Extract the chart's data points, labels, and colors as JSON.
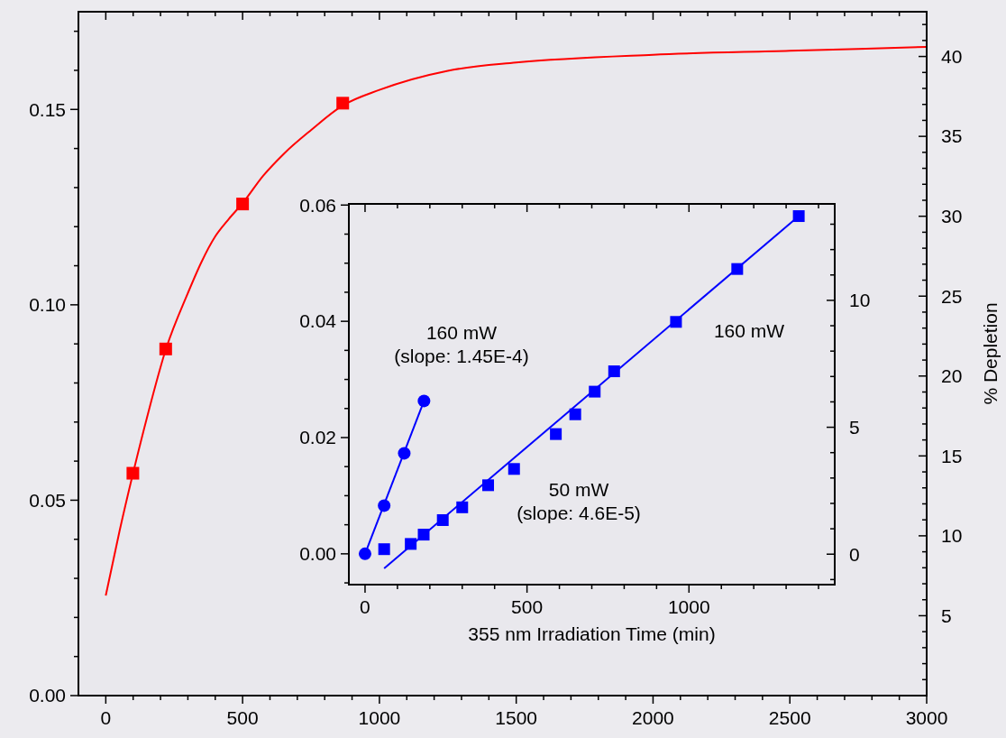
{
  "chart_data": [
    {
      "type": "scatter",
      "y2label": "% Depletion",
      "xlim": [
        -100,
        3000
      ],
      "ylim": [
        0,
        0.175
      ],
      "y2lim": [
        0,
        42.8
      ],
      "xticks": [
        0,
        {
          "value": 100,
          "label": null
        },
        {
          "value": 200,
          "label": null
        },
        {
          "value": 300,
          "label": null
        },
        {
          "value": 400,
          "label": null
        },
        500,
        {
          "value": 600,
          "label": null
        },
        {
          "value": 700,
          "label": null
        },
        {
          "value": 800,
          "label": null
        },
        {
          "value": 900,
          "label": null
        },
        1000,
        {
          "value": 1100,
          "label": null
        },
        {
          "value": 1200,
          "label": null
        },
        {
          "value": 1300,
          "label": null
        },
        {
          "value": 1400,
          "label": null
        },
        1500,
        {
          "value": 1600,
          "label": null
        },
        {
          "value": 1700,
          "label": null
        },
        {
          "value": 1800,
          "label": null
        },
        {
          "value": 1900,
          "label": null
        },
        2000,
        {
          "value": 2100,
          "label": null
        },
        {
          "value": 2200,
          "label": null
        },
        {
          "value": 2300,
          "label": null
        },
        {
          "value": 2400,
          "label": null
        },
        2500,
        {
          "value": 2600,
          "label": null
        },
        {
          "value": 2700,
          "label": null
        },
        {
          "value": 2800,
          "label": null
        },
        {
          "value": 2900,
          "label": null
        },
        3000
      ],
      "yticks": [
        {
          "value": 0,
          "label": "0.00"
        },
        {
          "value": 0.01,
          "label": null
        },
        {
          "value": 0.02,
          "label": null
        },
        {
          "value": 0.03,
          "label": null
        },
        {
          "value": 0.04,
          "label": null
        },
        0.05,
        {
          "value": 0.06,
          "label": null
        },
        {
          "value": 0.07,
          "label": null
        },
        {
          "value": 0.08,
          "label": null
        },
        {
          "value": 0.09,
          "label": null
        },
        {
          "value": 0.1,
          "label": "0.10"
        },
        {
          "value": 0.11,
          "label": null
        },
        {
          "value": 0.12,
          "label": null
        },
        {
          "value": 0.13,
          "label": null
        },
        {
          "value": 0.14,
          "label": null
        },
        0.15,
        {
          "value": 0.16,
          "label": null
        },
        {
          "value": 0.17,
          "label": null
        }
      ],
      "y2ticks": [
        {
          "value": 1,
          "label": null
        },
        {
          "value": 2,
          "label": null
        },
        {
          "value": 3,
          "label": null
        },
        {
          "value": 4,
          "label": null
        },
        5,
        {
          "value": 6,
          "label": null
        },
        {
          "value": 7,
          "label": null
        },
        {
          "value": 8,
          "label": null
        },
        {
          "value": 9,
          "label": null
        },
        10,
        {
          "value": 11,
          "label": null
        },
        {
          "value": 12,
          "label": null
        },
        {
          "value": 13,
          "label": null
        },
        {
          "value": 14,
          "label": null
        },
        15,
        {
          "value": 16,
          "label": null
        },
        {
          "value": 17,
          "label": null
        },
        {
          "value": 18,
          "label": null
        },
        {
          "value": 19,
          "label": null
        },
        20,
        {
          "value": 21,
          "label": null
        },
        {
          "value": 22,
          "label": null
        },
        {
          "value": 23,
          "label": null
        },
        {
          "value": 24,
          "label": null
        },
        25,
        {
          "value": 26,
          "label": null
        },
        {
          "value": 27,
          "label": null
        },
        {
          "value": 28,
          "label": null
        },
        {
          "value": 29,
          "label": null
        },
        30,
        {
          "value": 31,
          "label": null
        },
        {
          "value": 32,
          "label": null
        },
        {
          "value": 33,
          "label": null
        },
        {
          "value": 34,
          "label": null
        },
        35,
        {
          "value": 36,
          "label": null
        },
        {
          "value": 37,
          "label": null
        },
        {
          "value": 38,
          "label": null
        },
        {
          "value": 39,
          "label": null
        },
        40,
        {
          "value": 41,
          "label": null
        },
        {
          "value": 42,
          "label": null
        }
      ],
      "series": [
        {
          "type": "line",
          "color": "#ff0000",
          "x": [
            0,
            50,
            100,
            150,
            220,
            300,
            350,
            400,
            450,
            500,
            575,
            650,
            750,
            866,
            1000,
            1250,
            1500,
            2000,
            2500,
            3000
          ],
          "values": [
            0.0256,
            0.042,
            0.057,
            0.071,
            0.0887,
            0.103,
            0.111,
            0.1175,
            0.122,
            0.126,
            0.133,
            0.1386,
            0.1447,
            0.151,
            0.155,
            0.1599,
            0.162,
            0.164,
            0.165,
            0.166
          ]
        },
        {
          "color": "#ff0000",
          "marker": "square",
          "x": [
            99,
            219,
            500,
            866
          ],
          "values": [
            0.0569,
            0.0887,
            0.1258,
            0.1516
          ]
        }
      ]
    },
    {
      "type": "scatter",
      "xlabel": "355 nm Irradiation Time (min)",
      "xlim": [
        -50,
        1450
      ],
      "ylim": [
        -0.0053,
        0.0602
      ],
      "y2lim": [
        -1.2,
        13.8
      ],
      "xticks": [
        0,
        {
          "value": 100,
          "label": null
        },
        {
          "value": 200,
          "label": null
        },
        {
          "value": 300,
          "label": null
        },
        {
          "value": 400,
          "label": null
        },
        500,
        {
          "value": 600,
          "label": null
        },
        {
          "value": 700,
          "label": null
        },
        {
          "value": 800,
          "label": null
        },
        {
          "value": 900,
          "label": null
        },
        1000,
        {
          "value": 1100,
          "label": null
        },
        {
          "value": 1200,
          "label": null
        },
        {
          "value": 1300,
          "label": null
        },
        {
          "value": 1400,
          "label": null
        }
      ],
      "yticks": [
        {
          "value": -0.005,
          "label": null
        },
        {
          "value": 0,
          "label": "0.00"
        },
        {
          "value": 0.005,
          "label": null
        },
        {
          "value": 0.01,
          "label": null
        },
        {
          "value": 0.015,
          "label": null
        },
        0.02,
        {
          "value": 0.025,
          "label": null
        },
        {
          "value": 0.03,
          "label": null
        },
        {
          "value": 0.035,
          "label": null
        },
        0.04,
        {
          "value": 0.045,
          "label": null
        },
        {
          "value": 0.05,
          "label": null
        },
        {
          "value": 0.055,
          "label": null
        },
        0.06
      ],
      "y2ticks": [
        {
          "value": -1,
          "label": null
        },
        0,
        {
          "value": 1,
          "label": null
        },
        {
          "value": 2,
          "label": null
        },
        {
          "value": 3,
          "label": null
        },
        {
          "value": 4,
          "label": null
        },
        5,
        {
          "value": 6,
          "label": null
        },
        {
          "value": 7,
          "label": null
        },
        {
          "value": 8,
          "label": null
        },
        {
          "value": 9,
          "label": null
        },
        10,
        {
          "value": 11,
          "label": null
        },
        {
          "value": 12,
          "label": null
        },
        {
          "value": 13,
          "label": null
        }
      ],
      "annotations": [
        "160 mW\n(slope: 1.45E-4)",
        "160 mW",
        "50 mW\n(slope: 4.6E-5)"
      ],
      "series": [
        {
          "type": "line",
          "color": "#0000ff",
          "x": [
            0,
            182
          ],
          "values": [
            0,
            0.0263
          ]
        },
        {
          "type": "line",
          "color": "#0000ff",
          "x": [
            59,
            1339
          ],
          "values": [
            -0.0025,
            0.0581
          ]
        },
        {
          "color": "#0000ff",
          "marker": "circle",
          "x": [
            0,
            59,
            121,
            182
          ],
          "values": [
            0,
            0.0083,
            0.0173,
            0.0263
          ]
        },
        {
          "color": "#0000ff",
          "marker": "square",
          "x": [
            59,
            141,
            181,
            240,
            300,
            380,
            460,
            589,
            649,
            709,
            769,
            960,
            1149,
            1339
          ],
          "values": [
            0.0008,
            0.0017,
            0.0033,
            0.0058,
            0.008,
            0.0118,
            0.0146,
            0.0206,
            0.024,
            0.0279,
            0.0314,
            0.0399,
            0.049,
            0.0581
          ]
        }
      ]
    }
  ]
}
